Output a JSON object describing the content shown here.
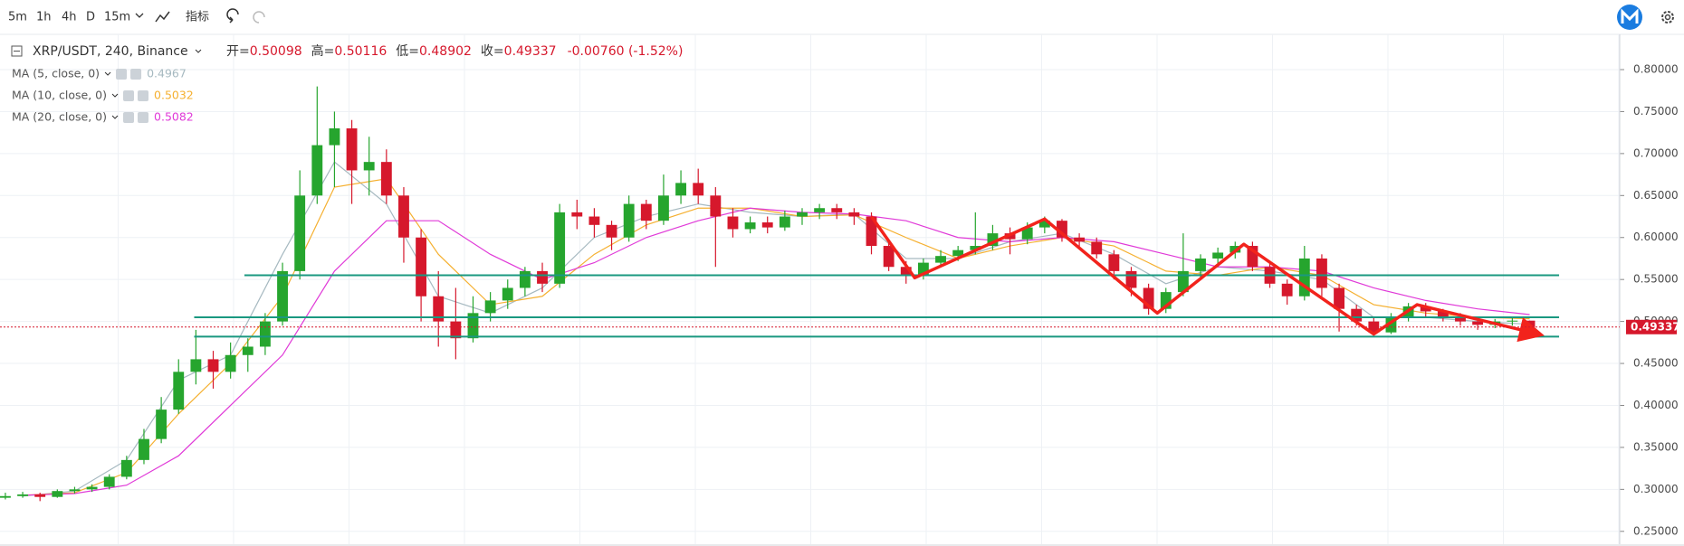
{
  "toolbar": {
    "intervals": [
      "5m",
      "1h",
      "4h",
      "D",
      "15m"
    ],
    "indicators": "指标"
  },
  "chart_data": {
    "type": "candlestick",
    "symbol": "XRP/USDT, 240, Binance",
    "ohlc_labels": [
      "开=",
      "高=",
      "低=",
      "收="
    ],
    "change": "-0.00760 (-1.52%)",
    "up_color": "#26a52e",
    "down_color": "#d6182c",
    "candles": [
      [
        0.29,
        0.296,
        0.288,
        0.292
      ],
      [
        0.292,
        0.297,
        0.29,
        0.294
      ],
      [
        0.294,
        0.296,
        0.286,
        0.291
      ],
      [
        0.291,
        0.3,
        0.29,
        0.298
      ],
      [
        0.298,
        0.303,
        0.295,
        0.3
      ],
      [
        0.3,
        0.306,
        0.297,
        0.303
      ],
      [
        0.303,
        0.318,
        0.3,
        0.315
      ],
      [
        0.315,
        0.34,
        0.312,
        0.335
      ],
      [
        0.335,
        0.372,
        0.33,
        0.36
      ],
      [
        0.36,
        0.41,
        0.355,
        0.395
      ],
      [
        0.395,
        0.455,
        0.39,
        0.44
      ],
      [
        0.44,
        0.49,
        0.425,
        0.455
      ],
      [
        0.455,
        0.465,
        0.42,
        0.44
      ],
      [
        0.44,
        0.475,
        0.432,
        0.46
      ],
      [
        0.46,
        0.48,
        0.44,
        0.47
      ],
      [
        0.47,
        0.51,
        0.46,
        0.5
      ],
      [
        0.5,
        0.57,
        0.495,
        0.56
      ],
      [
        0.56,
        0.68,
        0.55,
        0.65
      ],
      [
        0.65,
        0.78,
        0.64,
        0.71
      ],
      [
        0.71,
        0.75,
        0.66,
        0.73
      ],
      [
        0.73,
        0.74,
        0.64,
        0.68
      ],
      [
        0.68,
        0.72,
        0.65,
        0.69
      ],
      [
        0.69,
        0.705,
        0.64,
        0.65
      ],
      [
        0.65,
        0.66,
        0.57,
        0.6
      ],
      [
        0.6,
        0.61,
        0.5,
        0.53
      ],
      [
        0.53,
        0.56,
        0.47,
        0.5
      ],
      [
        0.5,
        0.54,
        0.455,
        0.48
      ],
      [
        0.48,
        0.53,
        0.475,
        0.51
      ],
      [
        0.51,
        0.535,
        0.5,
        0.525
      ],
      [
        0.525,
        0.55,
        0.515,
        0.54
      ],
      [
        0.54,
        0.565,
        0.53,
        0.56
      ],
      [
        0.56,
        0.57,
        0.535,
        0.545
      ],
      [
        0.545,
        0.64,
        0.54,
        0.63
      ],
      [
        0.63,
        0.645,
        0.61,
        0.625
      ],
      [
        0.625,
        0.635,
        0.6,
        0.615
      ],
      [
        0.615,
        0.62,
        0.585,
        0.6
      ],
      [
        0.6,
        0.65,
        0.595,
        0.64
      ],
      [
        0.64,
        0.645,
        0.61,
        0.62
      ],
      [
        0.62,
        0.675,
        0.615,
        0.65
      ],
      [
        0.65,
        0.68,
        0.64,
        0.665
      ],
      [
        0.665,
        0.682,
        0.64,
        0.65
      ],
      [
        0.65,
        0.66,
        0.565,
        0.625
      ],
      [
        0.625,
        0.635,
        0.6,
        0.61
      ],
      [
        0.61,
        0.625,
        0.605,
        0.618
      ],
      [
        0.618,
        0.625,
        0.605,
        0.612
      ],
      [
        0.612,
        0.632,
        0.608,
        0.625
      ],
      [
        0.625,
        0.635,
        0.615,
        0.63
      ],
      [
        0.63,
        0.64,
        0.622,
        0.635
      ],
      [
        0.635,
        0.64,
        0.622,
        0.63
      ],
      [
        0.63,
        0.635,
        0.615,
        0.625
      ],
      [
        0.625,
        0.63,
        0.58,
        0.59
      ],
      [
        0.59,
        0.598,
        0.56,
        0.565
      ],
      [
        0.565,
        0.572,
        0.545,
        0.555
      ],
      [
        0.555,
        0.575,
        0.55,
        0.57
      ],
      [
        0.57,
        0.585,
        0.565,
        0.578
      ],
      [
        0.578,
        0.59,
        0.572,
        0.585
      ],
      [
        0.585,
        0.63,
        0.58,
        0.59
      ],
      [
        0.59,
        0.615,
        0.585,
        0.605
      ],
      [
        0.605,
        0.612,
        0.58,
        0.598
      ],
      [
        0.598,
        0.618,
        0.592,
        0.612
      ],
      [
        0.612,
        0.625,
        0.605,
        0.62
      ],
      [
        0.62,
        0.622,
        0.595,
        0.6
      ],
      [
        0.6,
        0.605,
        0.588,
        0.595
      ],
      [
        0.595,
        0.6,
        0.575,
        0.58
      ],
      [
        0.58,
        0.585,
        0.55,
        0.56
      ],
      [
        0.56,
        0.565,
        0.53,
        0.54
      ],
      [
        0.54,
        0.545,
        0.508,
        0.515
      ],
      [
        0.515,
        0.54,
        0.51,
        0.535
      ],
      [
        0.535,
        0.605,
        0.53,
        0.56
      ],
      [
        0.56,
        0.58,
        0.55,
        0.575
      ],
      [
        0.575,
        0.588,
        0.565,
        0.582
      ],
      [
        0.582,
        0.595,
        0.575,
        0.59
      ],
      [
        0.59,
        0.595,
        0.56,
        0.565
      ],
      [
        0.565,
        0.57,
        0.54,
        0.545
      ],
      [
        0.545,
        0.55,
        0.52,
        0.53
      ],
      [
        0.53,
        0.59,
        0.525,
        0.575
      ],
      [
        0.575,
        0.58,
        0.53,
        0.54
      ],
      [
        0.54,
        0.545,
        0.488,
        0.515
      ],
      [
        0.515,
        0.52,
        0.495,
        0.5
      ],
      [
        0.5,
        0.505,
        0.483,
        0.487
      ],
      [
        0.487,
        0.51,
        0.485,
        0.505
      ],
      [
        0.505,
        0.522,
        0.5,
        0.518
      ],
      [
        0.518,
        0.522,
        0.505,
        0.512
      ],
      [
        0.512,
        0.515,
        0.5,
        0.505
      ],
      [
        0.505,
        0.51,
        0.495,
        0.5
      ],
      [
        0.5,
        0.505,
        0.49,
        0.496
      ],
      [
        0.496,
        0.503,
        0.492,
        0.5
      ],
      [
        0.5,
        0.505,
        0.495,
        0.50098
      ],
      [
        0.50098,
        0.50116,
        0.48902,
        0.49337
      ]
    ],
    "ma_x": [
      1,
      4,
      7,
      10,
      13,
      16,
      19,
      22,
      25,
      28,
      31,
      34,
      37,
      40,
      43,
      46,
      49,
      52,
      55,
      58,
      61,
      64,
      67,
      70,
      73,
      76,
      79,
      82,
      85,
      88
    ],
    "series": [
      {
        "name": "MA (5, close, 0)",
        "color": "#a6b9c0",
        "values": [
          0.292,
          0.298,
          0.335,
          0.43,
          0.46,
          0.58,
          0.69,
          0.64,
          0.53,
          0.51,
          0.54,
          0.6,
          0.625,
          0.64,
          0.63,
          0.625,
          0.628,
          0.575,
          0.575,
          0.595,
          0.605,
          0.58,
          0.545,
          0.565,
          0.56,
          0.55,
          0.505,
          0.505,
          0.5,
          0.4967
        ]
      },
      {
        "name": "MA (10, close, 0)",
        "color": "#f5b030",
        "values": [
          0.293,
          0.296,
          0.32,
          0.39,
          0.45,
          0.53,
          0.66,
          0.67,
          0.58,
          0.52,
          0.53,
          0.58,
          0.615,
          0.635,
          0.635,
          0.625,
          0.627,
          0.6,
          0.575,
          0.59,
          0.6,
          0.59,
          0.56,
          0.555,
          0.565,
          0.555,
          0.52,
          0.51,
          0.505,
          0.5032
        ]
      },
      {
        "name": "MA (20, close, 0)",
        "color": "#e03ad8",
        "values": [
          0.293,
          0.295,
          0.305,
          0.34,
          0.4,
          0.46,
          0.56,
          0.62,
          0.62,
          0.58,
          0.55,
          0.57,
          0.6,
          0.62,
          0.635,
          0.63,
          0.628,
          0.62,
          0.6,
          0.595,
          0.6,
          0.595,
          0.58,
          0.565,
          0.565,
          0.56,
          0.54,
          0.525,
          0.515,
          0.5082
        ]
      }
    ],
    "support_lines": [
      {
        "y": 0.555,
        "x": [
          13.8,
          89.7
        ]
      },
      {
        "y": 0.505,
        "x": [
          10.9,
          89.7
        ]
      },
      {
        "y": 0.482,
        "x": [
          10.9,
          89.7
        ]
      }
    ],
    "support_color": "#1a9880",
    "trend_line": {
      "x": [
        50,
        52.5,
        60,
        66.5,
        71.5,
        79,
        81.5,
        88.5
      ],
      "y": [
        0.625,
        0.552,
        0.622,
        0.51,
        0.592,
        0.485,
        0.52,
        0.485
      ],
      "color": "#f2231c"
    },
    "xlim": [
      -0.31,
      93.2
    ],
    "ylim": [
      0.2347,
      0.842
    ],
    "yticks": [
      {
        "value": 0.25,
        "label": "0.25000"
      },
      {
        "value": 0.3,
        "label": "0.30000"
      },
      {
        "value": 0.35,
        "label": "0.35000"
      },
      {
        "value": 0.4,
        "label": "0.40000"
      },
      {
        "value": 0.45,
        "label": "0.45000"
      },
      {
        "value": 0.5,
        "label": "0.50000"
      },
      {
        "value": 0.55,
        "label": "0.55000"
      },
      {
        "value": 0.6,
        "label": "0.60000"
      },
      {
        "value": 0.65,
        "label": "0.65000"
      },
      {
        "value": 0.7,
        "label": "0.70000"
      },
      {
        "value": 0.75,
        "label": "0.75000"
      },
      {
        "value": 0.8,
        "label": "0.80000"
      }
    ],
    "grid": true
  }
}
